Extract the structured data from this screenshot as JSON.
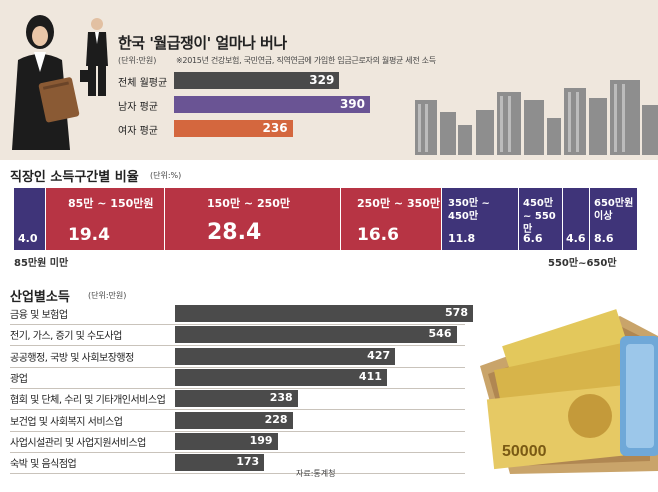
{
  "top": {
    "title": "한국 '월급쟁이' 얼마나 버나",
    "unit": "(단위:만원)",
    "note": "※2015년 건강보험, 국민연금, 직역연금에 가입한 임금근로자의 월평균 세전 소득",
    "colors": {
      "total": "#4a4a4a",
      "male": "#6a5494",
      "female": "#d4673e"
    }
  },
  "dist": {
    "title": "직장인 소득구간별 비율",
    "unit": "(단위:%)",
    "below_left": "85만원 미만",
    "below_right": "550만~650만",
    "colors": {
      "red": "#b73444",
      "purple": "#3f3479"
    }
  },
  "industry": {
    "title": "산업별소득",
    "unit": "(단위:만원)",
    "source": "자료:통계청",
    "bar_color": "#4b4b4b"
  },
  "chart_data": [
    {
      "type": "bar",
      "title": "한국 '월급쟁이' 얼마나 버나",
      "categories": [
        "전체 월평균",
        "남자 평균",
        "여자 평균"
      ],
      "values": [
        329,
        390,
        236
      ],
      "unit": "만원"
    },
    {
      "type": "bar",
      "title": "직장인 소득구간별 비율",
      "categories": [
        "85만원 미만",
        "85만 ~ 150만원",
        "150만 ~ 250만",
        "250만 ~ 350만",
        "350만 ~ 450만",
        "450만 ~ 550만",
        "550만~650만",
        "650만원 이상"
      ],
      "values": [
        4.0,
        19.4,
        28.4,
        16.6,
        11.8,
        6.6,
        4.6,
        8.6
      ],
      "unit": "%"
    },
    {
      "type": "bar",
      "title": "산업별소득",
      "categories": [
        "금융 및 보험업",
        "전기, 가스, 증기 및 수도사업",
        "공공행정, 국방 및 사회보장행정",
        "광업",
        "협회 및 단체, 수리 및 기타개인서비스업",
        "보건업 및 사회복지 서비스업",
        "사업시설관리 및 사업지원서비스업",
        "숙박 및 음식점업"
      ],
      "values": [
        578,
        546,
        427,
        411,
        238,
        228,
        199,
        173
      ],
      "unit": "만원"
    }
  ]
}
